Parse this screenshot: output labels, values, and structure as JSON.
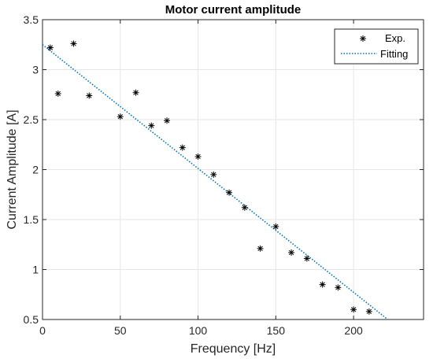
{
  "chart_data": {
    "type": "scatter",
    "title": "Motor current amplitude",
    "xlabel": "Frequency [Hz]",
    "ylabel": "Current Amplitude [A]",
    "xlim": [
      0,
      245
    ],
    "ylim": [
      0.5,
      3.5
    ],
    "xticks": [
      0,
      50,
      100,
      150,
      200
    ],
    "yticks": [
      0.5,
      1,
      1.5,
      2,
      2.5,
      3,
      3.5
    ],
    "xtick_labels": [
      "0",
      "50",
      "100",
      "150",
      "200"
    ],
    "ytick_labels": [
      "0.5",
      "1",
      "1.5",
      "2",
      "2.5",
      "3",
      "3.5"
    ],
    "grid": true,
    "legend_position": "top-right",
    "series": [
      {
        "name": "Exp.",
        "kind": "scatter",
        "marker": "asterisk",
        "color": "#000000",
        "x": [
          5,
          10,
          20,
          30,
          50,
          60,
          70,
          80,
          90,
          100,
          110,
          120,
          130,
          140,
          150,
          160,
          170,
          180,
          190,
          200,
          210
        ],
        "y": [
          3.22,
          2.76,
          3.26,
          2.74,
          2.53,
          2.77,
          2.44,
          2.49,
          2.22,
          2.13,
          1.95,
          1.77,
          1.62,
          1.21,
          1.43,
          1.17,
          1.11,
          0.85,
          0.82,
          0.6,
          0.58
        ]
      },
      {
        "name": "Fitting",
        "kind": "line",
        "style": "dotted",
        "color": "#0072BD",
        "x": [
          0,
          222
        ],
        "y": [
          3.25,
          0.5
        ]
      }
    ]
  }
}
